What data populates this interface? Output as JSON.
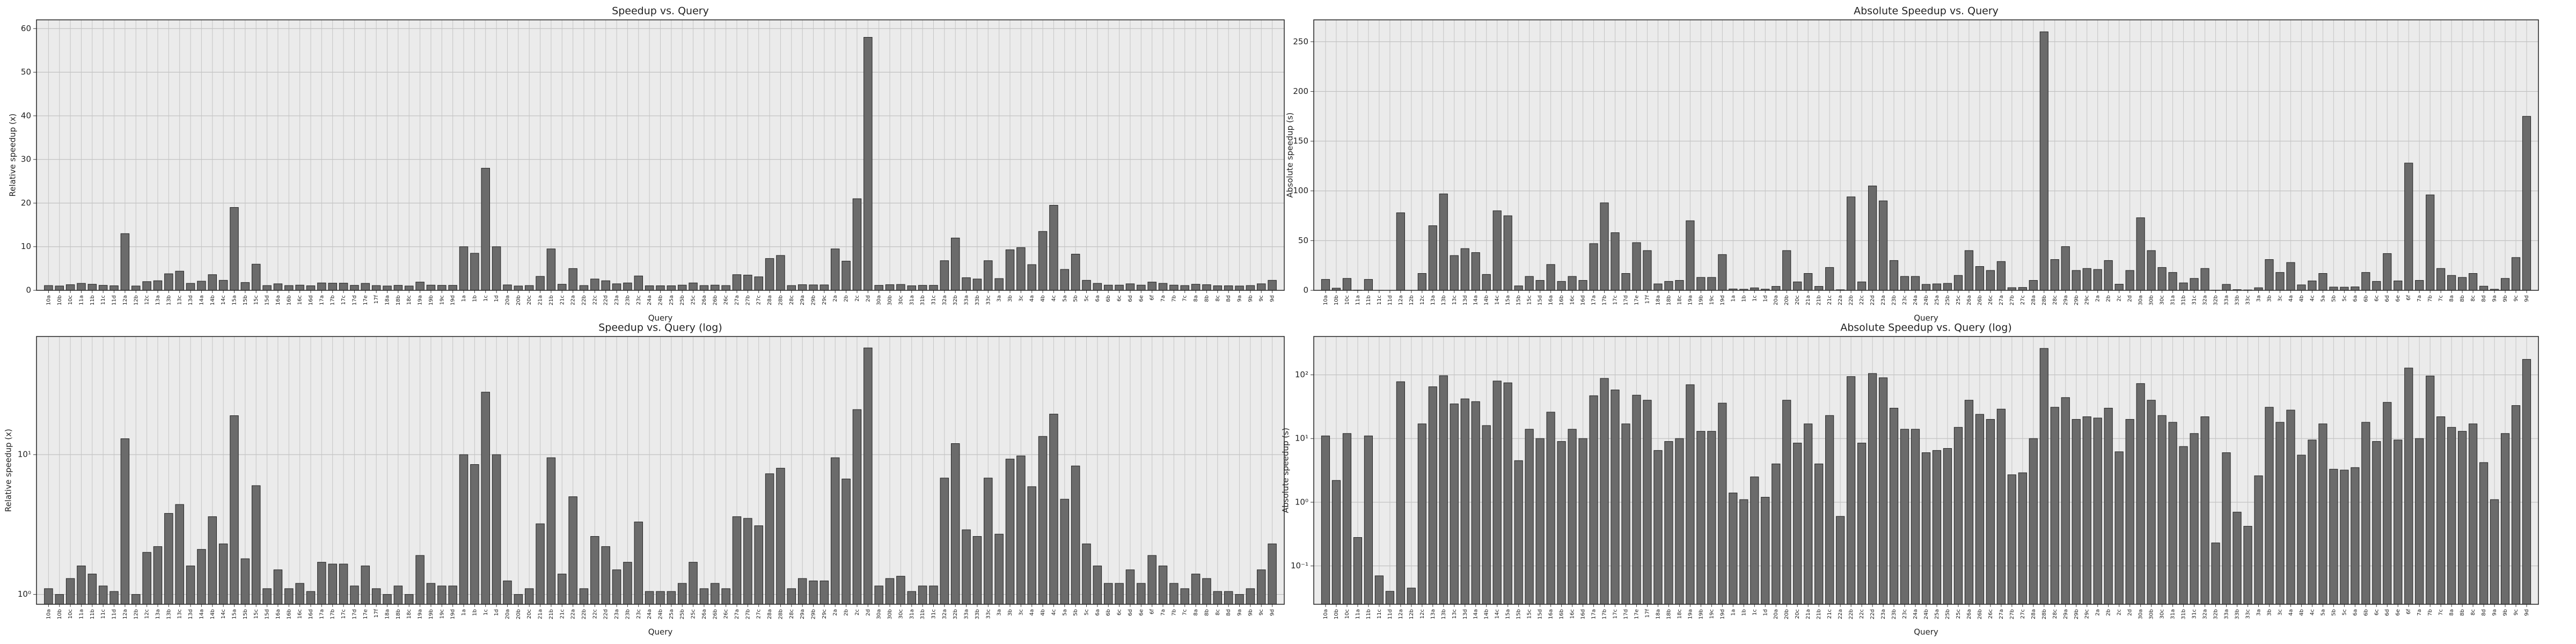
{
  "chart_data": [
    {
      "type": "bar",
      "title": "Speedup vs. Query",
      "xlabel": "Query",
      "ylabel": "Relative speedup (x)",
      "color": "#6b6b6b",
      "log": false,
      "grid": true,
      "ylim": [
        0,
        62
      ],
      "yticks": [
        0,
        10,
        20,
        30,
        40,
        50,
        60
      ],
      "categories": [
        "10a",
        "10b",
        "10c",
        "11a",
        "11b",
        "11c",
        "11d",
        "12a",
        "12b",
        "12c",
        "13a",
        "13b",
        "13c",
        "13d",
        "14a",
        "14b",
        "14c",
        "15a",
        "15b",
        "15c",
        "15d",
        "16a",
        "16b",
        "16c",
        "16d",
        "17a",
        "17b",
        "17c",
        "17d",
        "17e",
        "17f",
        "18a",
        "18b",
        "18c",
        "19a",
        "19b",
        "19c",
        "19d",
        "1a",
        "1b",
        "1c",
        "1d",
        "20a",
        "20b",
        "20c",
        "21a",
        "21b",
        "21c",
        "22a",
        "22b",
        "22c",
        "22d",
        "23a",
        "23b",
        "23c",
        "24a",
        "24b",
        "25a",
        "25b",
        "25c",
        "26a",
        "26b",
        "26c",
        "27a",
        "27b",
        "27c",
        "28a",
        "28b",
        "28c",
        "29a",
        "29b",
        "29c",
        "2a",
        "2b",
        "2c",
        "2d",
        "30a",
        "30b",
        "30c",
        "31a",
        "31b",
        "31c",
        "32a",
        "32b",
        "33a",
        "33b",
        "33c",
        "3a",
        "3b",
        "3c",
        "4a",
        "4b",
        "4c",
        "5a",
        "5b",
        "5c",
        "6a",
        "6b",
        "6c",
        "6d",
        "6e",
        "6f",
        "7a",
        "7b",
        "7c",
        "8a",
        "8b",
        "8c",
        "8d",
        "9a",
        "9b",
        "9c",
        "9d"
      ],
      "values": [
        1.1,
        1.0,
        1.3,
        1.6,
        1.4,
        1.15,
        1.05,
        13,
        1.0,
        2.0,
        2.2,
        3.8,
        4.4,
        1.6,
        2.1,
        3.6,
        2.3,
        19,
        1.8,
        6,
        1.1,
        1.5,
        1.1,
        1.2,
        1.05,
        1.7,
        1.65,
        1.65,
        1.15,
        1.6,
        1.1,
        1.0,
        1.15,
        1.0,
        1.9,
        1.2,
        1.15,
        1.15,
        10,
        8.5,
        28,
        10,
        1.25,
        1.0,
        1.1,
        3.2,
        9.5,
        1.4,
        5.0,
        1.1,
        2.6,
        2.2,
        1.5,
        1.7,
        3.3,
        1.05,
        1.05,
        1.05,
        1.2,
        1.7,
        1.1,
        1.2,
        1.1,
        3.6,
        3.5,
        3.1,
        7.3,
        8.0,
        1.1,
        1.3,
        1.25,
        1.25,
        9.5,
        6.7,
        21,
        58,
        1.15,
        1.3,
        1.35,
        1.05,
        1.15,
        1.15,
        6.8,
        12,
        2.9,
        2.6,
        6.8,
        2.7,
        9.3,
        9.8,
        5.9,
        13.5,
        19.5,
        4.8,
        8.3,
        2.3,
        1.6,
        1.2,
        1.2,
        1.5,
        1.2,
        1.9,
        1.6,
        1.2,
        1.1,
        1.4,
        1.3,
        1.05,
        1.05,
        1.0,
        1.1,
        1.5,
        2.3
      ]
    },
    {
      "type": "bar",
      "title": "Absolute Speedup vs. Query",
      "xlabel": "Query",
      "ylabel": "Absolute speedup (s)",
      "color": "#6b6b6b",
      "log": false,
      "grid": true,
      "ylim": [
        0,
        272
      ],
      "yticks": [
        0,
        50,
        100,
        150,
        200,
        250
      ],
      "categories": [
        "10a",
        "10b",
        "10c",
        "11a",
        "11b",
        "11c",
        "11d",
        "12a",
        "12b",
        "12c",
        "13a",
        "13b",
        "13c",
        "13d",
        "14a",
        "14b",
        "14c",
        "15a",
        "15b",
        "15c",
        "15d",
        "16a",
        "16b",
        "16c",
        "16d",
        "17a",
        "17b",
        "17c",
        "17d",
        "17e",
        "17f",
        "18a",
        "18b",
        "18c",
        "19a",
        "19b",
        "19c",
        "19d",
        "1a",
        "1b",
        "1c",
        "1d",
        "20a",
        "20b",
        "20c",
        "21a",
        "21b",
        "21c",
        "22a",
        "22b",
        "22c",
        "22d",
        "23a",
        "23b",
        "23c",
        "24a",
        "24b",
        "25a",
        "25b",
        "25c",
        "26a",
        "26b",
        "26c",
        "27a",
        "27b",
        "27c",
        "28a",
        "28b",
        "28c",
        "29a",
        "29b",
        "29c",
        "2a",
        "2b",
        "2c",
        "2d",
        "30a",
        "30b",
        "30c",
        "31a",
        "31b",
        "31c",
        "32a",
        "32b",
        "33a",
        "33b",
        "33c",
        "3a",
        "3b",
        "3c",
        "4a",
        "4b",
        "4c",
        "5a",
        "5b",
        "5c",
        "6a",
        "6b",
        "6c",
        "6d",
        "6e",
        "6f",
        "7a",
        "7b",
        "7c",
        "8a",
        "8b",
        "8c",
        "8d",
        "9a",
        "9b",
        "9c",
        "9d"
      ],
      "values": [
        11,
        2.2,
        12,
        0.28,
        11,
        0.07,
        0.04,
        78,
        0.045,
        17,
        65,
        97,
        35,
        42,
        38,
        16,
        80,
        75,
        4.5,
        14,
        10,
        26,
        9,
        14,
        10,
        47,
        88,
        58,
        17,
        48,
        40,
        6.5,
        9,
        10,
        70,
        13,
        13,
        36,
        1.4,
        1.1,
        2.5,
        1.2,
        4,
        40,
        8.5,
        17,
        4,
        23,
        0.6,
        94,
        8.5,
        105,
        90,
        30,
        14,
        14,
        6,
        6.5,
        7,
        15,
        40,
        24,
        20,
        29,
        2.7,
        2.9,
        10,
        260,
        31,
        44,
        20,
        22,
        21,
        30,
        6.2,
        20,
        73,
        40,
        23,
        18,
        7.5,
        12,
        22,
        0.23,
        6,
        0.7,
        0.42,
        2.6,
        31,
        18,
        28,
        5.5,
        9.5,
        17,
        3.3,
        3.2,
        3.5,
        18,
        9,
        37,
        9.5,
        128,
        10,
        96,
        22,
        15,
        13,
        17,
        4.2,
        1.1,
        12,
        33,
        175
      ]
    },
    {
      "type": "bar",
      "title": "Speedup vs. Query (log)",
      "xlabel": "Query",
      "ylabel": "Relative speedup (x)",
      "color": "#6b6b6b",
      "log": true,
      "grid": true,
      "ylim": [
        0.85,
        70
      ],
      "yticks": [
        {
          "value": 1,
          "label": "10⁰"
        },
        {
          "value": 10,
          "label": "10¹"
        }
      ],
      "categories": [
        "10a",
        "10b",
        "10c",
        "11a",
        "11b",
        "11c",
        "11d",
        "12a",
        "12b",
        "12c",
        "13a",
        "13b",
        "13c",
        "13d",
        "14a",
        "14b",
        "14c",
        "15a",
        "15b",
        "15c",
        "15d",
        "16a",
        "16b",
        "16c",
        "16d",
        "17a",
        "17b",
        "17c",
        "17d",
        "17e",
        "17f",
        "18a",
        "18b",
        "18c",
        "19a",
        "19b",
        "19c",
        "19d",
        "1a",
        "1b",
        "1c",
        "1d",
        "20a",
        "20b",
        "20c",
        "21a",
        "21b",
        "21c",
        "22a",
        "22b",
        "22c",
        "22d",
        "23a",
        "23b",
        "23c",
        "24a",
        "24b",
        "25a",
        "25b",
        "25c",
        "26a",
        "26b",
        "26c",
        "27a",
        "27b",
        "27c",
        "28a",
        "28b",
        "28c",
        "29a",
        "29b",
        "29c",
        "2a",
        "2b",
        "2c",
        "2d",
        "30a",
        "30b",
        "30c",
        "31a",
        "31b",
        "31c",
        "32a",
        "32b",
        "33a",
        "33b",
        "33c",
        "3a",
        "3b",
        "3c",
        "4a",
        "4b",
        "4c",
        "5a",
        "5b",
        "5c",
        "6a",
        "6b",
        "6c",
        "6d",
        "6e",
        "6f",
        "7a",
        "7b",
        "7c",
        "8a",
        "8b",
        "8c",
        "8d",
        "9a",
        "9b",
        "9c",
        "9d"
      ],
      "values": [
        1.1,
        1.0,
        1.3,
        1.6,
        1.4,
        1.15,
        1.05,
        13,
        1.0,
        2.0,
        2.2,
        3.8,
        4.4,
        1.6,
        2.1,
        3.6,
        2.3,
        19,
        1.8,
        6,
        1.1,
        1.5,
        1.1,
        1.2,
        1.05,
        1.7,
        1.65,
        1.65,
        1.15,
        1.6,
        1.1,
        1.0,
        1.15,
        1.0,
        1.9,
        1.2,
        1.15,
        1.15,
        10,
        8.5,
        28,
        10,
        1.25,
        1.0,
        1.1,
        3.2,
        9.5,
        1.4,
        5.0,
        1.1,
        2.6,
        2.2,
        1.5,
        1.7,
        3.3,
        1.05,
        1.05,
        1.05,
        1.2,
        1.7,
        1.1,
        1.2,
        1.1,
        3.6,
        3.5,
        3.1,
        7.3,
        8.0,
        1.1,
        1.3,
        1.25,
        1.25,
        9.5,
        6.7,
        21,
        58,
        1.15,
        1.3,
        1.35,
        1.05,
        1.15,
        1.15,
        6.8,
        12,
        2.9,
        2.6,
        6.8,
        2.7,
        9.3,
        9.8,
        5.9,
        13.5,
        19.5,
        4.8,
        8.3,
        2.3,
        1.6,
        1.2,
        1.2,
        1.5,
        1.2,
        1.9,
        1.6,
        1.2,
        1.1,
        1.4,
        1.3,
        1.05,
        1.05,
        1.0,
        1.1,
        1.5,
        2.3
      ]
    },
    {
      "type": "bar",
      "title": "Absolute Speedup vs. Query (log)",
      "xlabel": "Query",
      "ylabel": "Absolute speedup (s)",
      "color": "#6b6b6b",
      "log": true,
      "grid": true,
      "ylim": [
        0.025,
        400
      ],
      "yticks": [
        {
          "value": 0.1,
          "label": "10⁻¹"
        },
        {
          "value": 1,
          "label": "10⁰"
        },
        {
          "value": 10,
          "label": "10¹"
        },
        {
          "value": 100,
          "label": "10²"
        }
      ],
      "categories": [
        "10a",
        "10b",
        "10c",
        "11a",
        "11b",
        "11c",
        "11d",
        "12a",
        "12b",
        "12c",
        "13a",
        "13b",
        "13c",
        "13d",
        "14a",
        "14b",
        "14c",
        "15a",
        "15b",
        "15c",
        "15d",
        "16a",
        "16b",
        "16c",
        "16d",
        "17a",
        "17b",
        "17c",
        "17d",
        "17e",
        "17f",
        "18a",
        "18b",
        "18c",
        "19a",
        "19b",
        "19c",
        "19d",
        "1a",
        "1b",
        "1c",
        "1d",
        "20a",
        "20b",
        "20c",
        "21a",
        "21b",
        "21c",
        "22a",
        "22b",
        "22c",
        "22d",
        "23a",
        "23b",
        "23c",
        "24a",
        "24b",
        "25a",
        "25b",
        "25c",
        "26a",
        "26b",
        "26c",
        "27a",
        "27b",
        "27c",
        "28a",
        "28b",
        "28c",
        "29a",
        "29b",
        "29c",
        "2a",
        "2b",
        "2c",
        "2d",
        "30a",
        "30b",
        "30c",
        "31a",
        "31b",
        "31c",
        "32a",
        "32b",
        "33a",
        "33b",
        "33c",
        "3a",
        "3b",
        "3c",
        "4a",
        "4b",
        "4c",
        "5a",
        "5b",
        "5c",
        "6a",
        "6b",
        "6c",
        "6d",
        "6e",
        "6f",
        "7a",
        "7b",
        "7c",
        "8a",
        "8b",
        "8c",
        "8d",
        "9a",
        "9b",
        "9c",
        "9d"
      ],
      "values": [
        11,
        2.2,
        12,
        0.28,
        11,
        0.07,
        0.04,
        78,
        0.045,
        17,
        65,
        97,
        35,
        42,
        38,
        16,
        80,
        75,
        4.5,
        14,
        10,
        26,
        9,
        14,
        10,
        47,
        88,
        58,
        17,
        48,
        40,
        6.5,
        9,
        10,
        70,
        13,
        13,
        36,
        1.4,
        1.1,
        2.5,
        1.2,
        4,
        40,
        8.5,
        17,
        4,
        23,
        0.6,
        94,
        8.5,
        105,
        90,
        30,
        14,
        14,
        6,
        6.5,
        7,
        15,
        40,
        24,
        20,
        29,
        2.7,
        2.9,
        10,
        260,
        31,
        44,
        20,
        22,
        21,
        30,
        6.2,
        20,
        73,
        40,
        23,
        18,
        7.5,
        12,
        22,
        0.23,
        6,
        0.7,
        0.42,
        2.6,
        31,
        18,
        28,
        5.5,
        9.5,
        17,
        3.3,
        3.2,
        3.5,
        18,
        9,
        37,
        9.5,
        128,
        10,
        96,
        22,
        15,
        13,
        17,
        4.2,
        1.1,
        12,
        33,
        175
      ]
    }
  ]
}
